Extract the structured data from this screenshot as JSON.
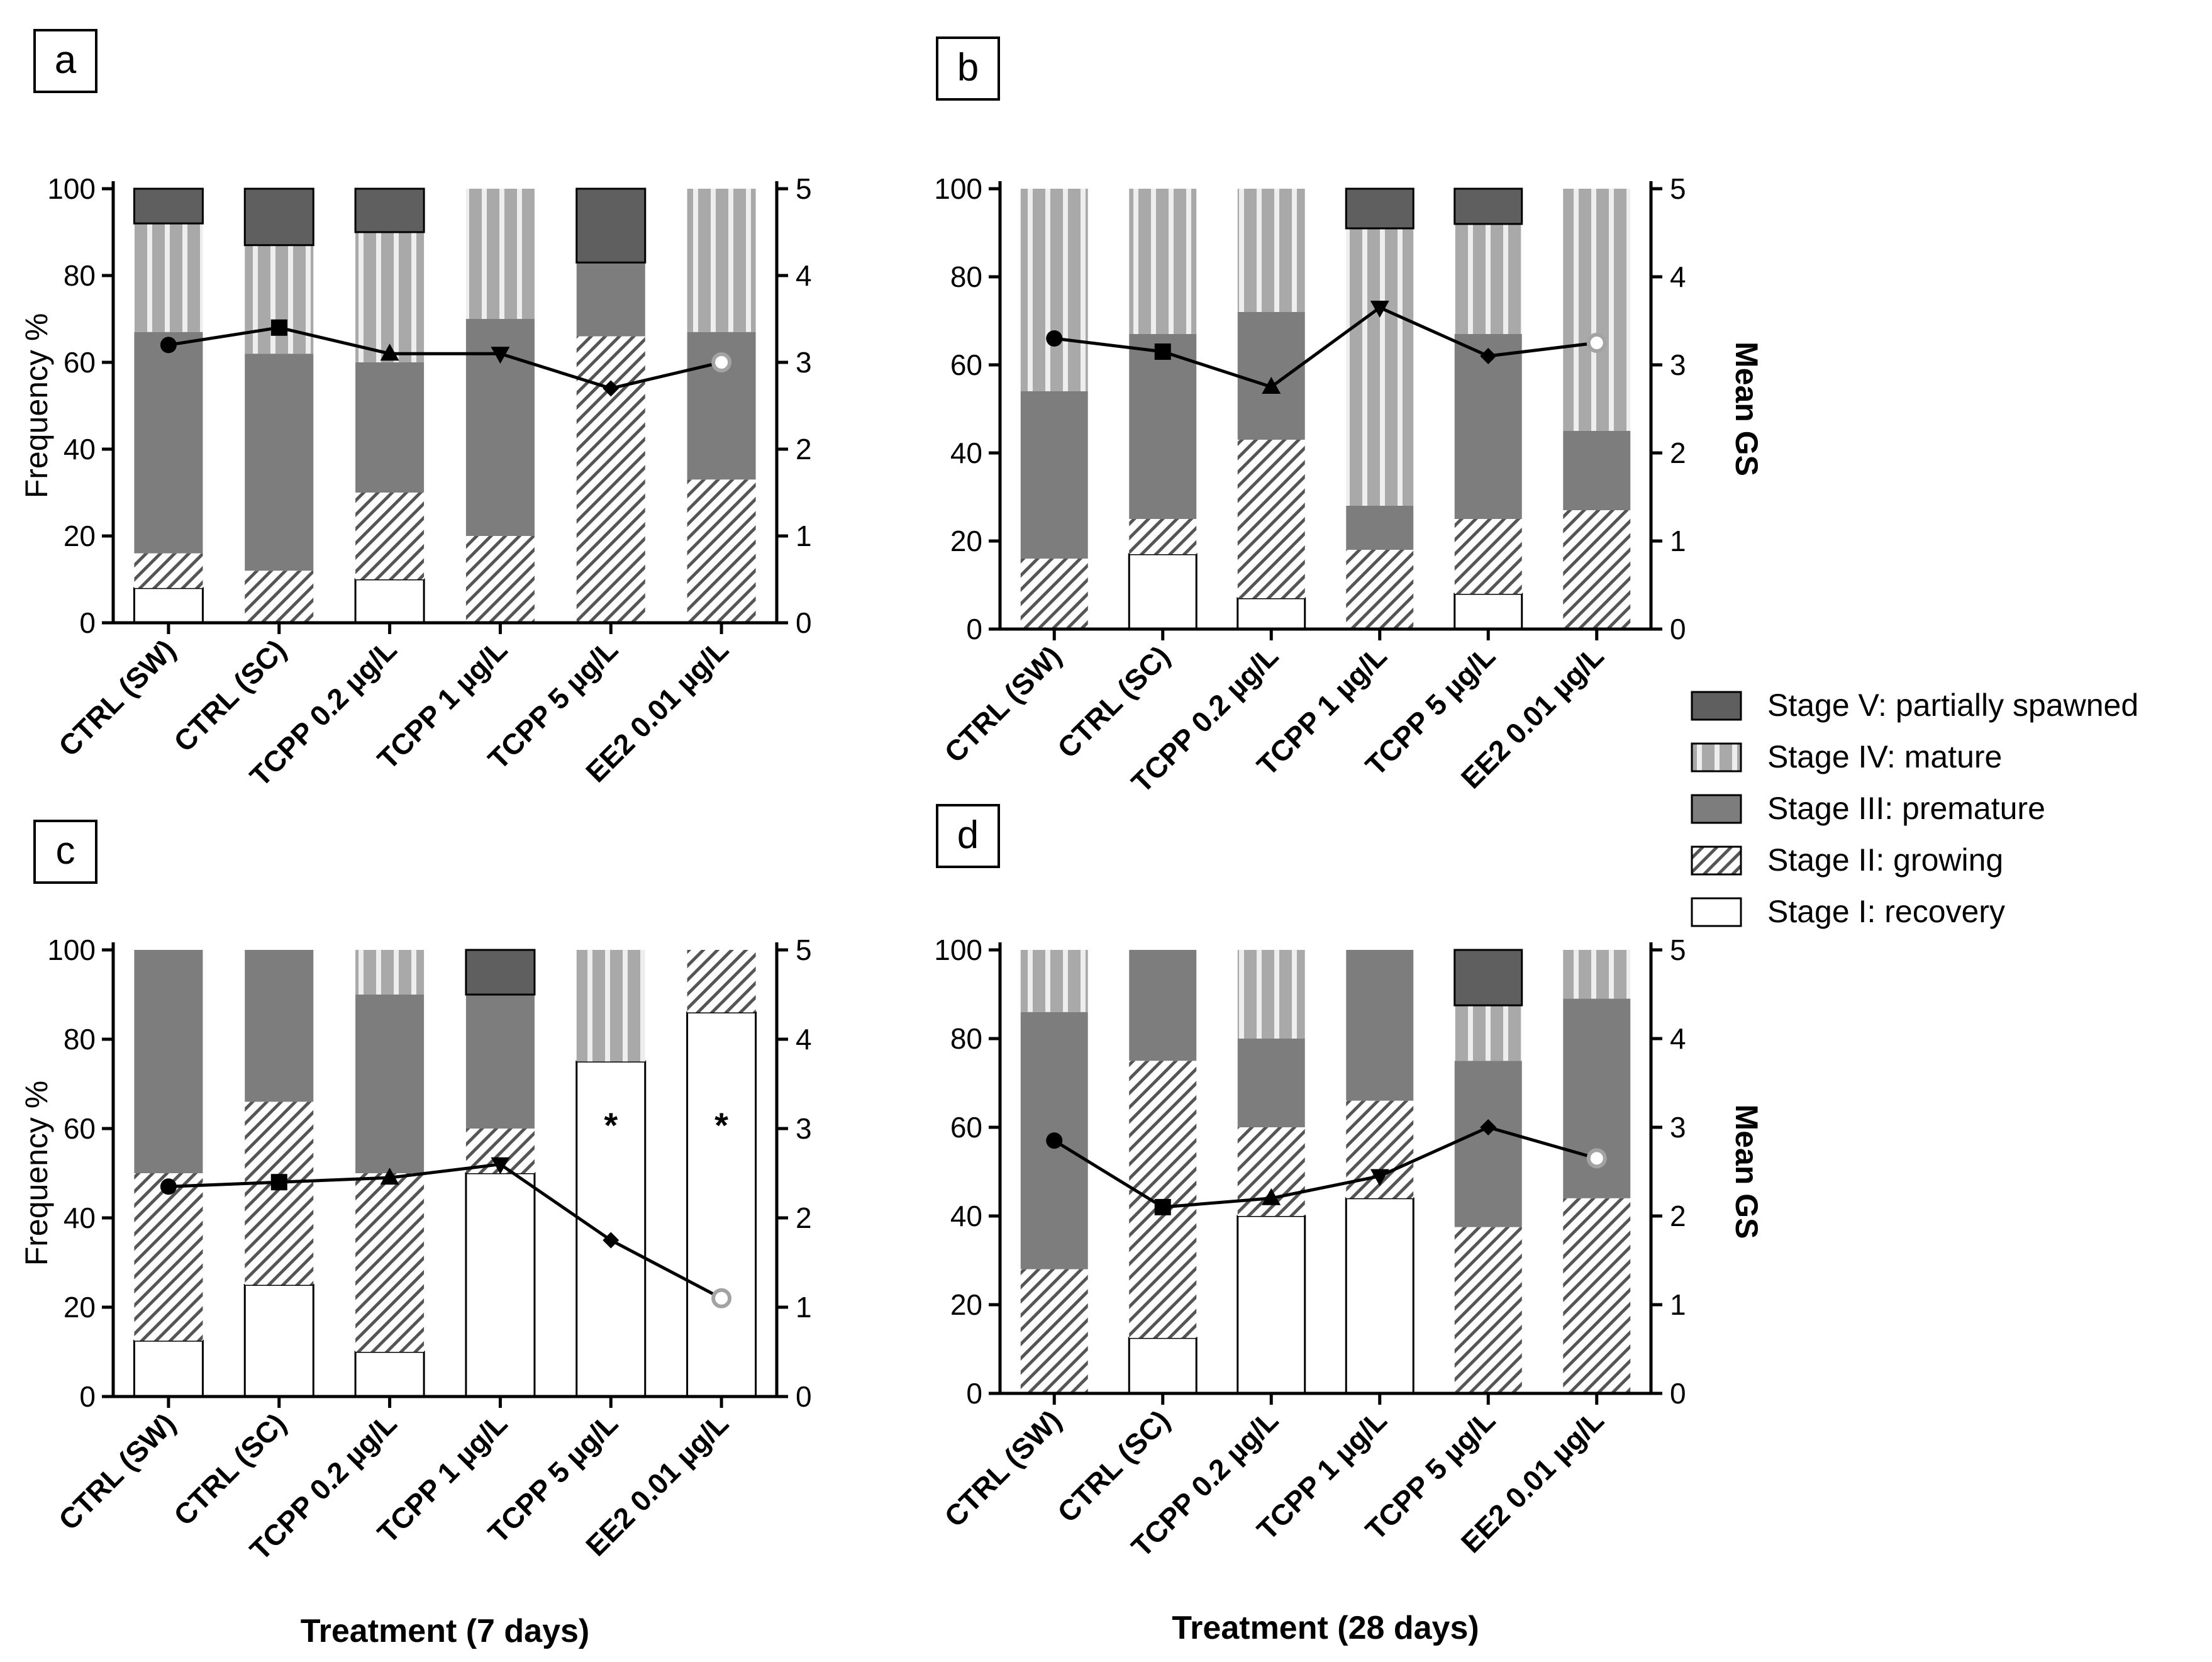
{
  "colors": {
    "stage_v": "#5f5f5f",
    "stage_iv_bg": "#a9a9a9",
    "stage_iv_stripe": "#eeeeee",
    "stage_iii": "#7d7d7d",
    "stage_ii_hatch": "#555555",
    "stage_i": "#ffffff",
    "axis": "#000000",
    "marker_hollow": "#a3a3a3"
  },
  "legend": {
    "items": [
      {
        "key": "V",
        "label": "Stage V: partially spawned"
      },
      {
        "key": "IV",
        "label": "Stage IV: mature"
      },
      {
        "key": "III",
        "label": "Stage III: premature"
      },
      {
        "key": "II",
        "label": "Stage II: growing"
      },
      {
        "key": "I",
        "label": "Stage I: recovery"
      }
    ]
  },
  "chart_data": [
    {
      "panel": "a",
      "type": "stacked-bar+line",
      "ylabel": "Frequency %",
      "y2label": "",
      "xlabel": "",
      "ylim": [
        0,
        100
      ],
      "yticks": [
        0,
        20,
        40,
        60,
        80,
        100
      ],
      "y2lim": [
        0,
        5
      ],
      "y2ticks": [
        0,
        1,
        2,
        3,
        4,
        5
      ],
      "categories": [
        "CTRL (SW)",
        "CTRL (SC)",
        "TCPP 0.2 µg/L",
        "TCPP 1 µg/L",
        "TCPP 5 µg/L",
        "EE2 0.01 µg/L"
      ],
      "series": [
        {
          "name": "Stage I: recovery",
          "values": [
            8,
            0,
            10,
            0,
            0,
            0
          ]
        },
        {
          "name": "Stage II: growing",
          "values": [
            8,
            12,
            20,
            20,
            66,
            33
          ]
        },
        {
          "name": "Stage III: premature",
          "values": [
            51,
            50,
            30,
            50,
            17,
            34
          ]
        },
        {
          "name": "Stage IV: mature",
          "values": [
            25,
            25,
            30,
            30,
            0,
            33
          ]
        },
        {
          "name": "Stage V: partially spawned",
          "values": [
            8,
            13,
            10,
            0,
            17,
            0
          ]
        }
      ],
      "mean_gs": [
        3.2,
        3.4,
        3.1,
        3.1,
        2.7,
        3.0
      ],
      "markers": [
        "circle",
        "square",
        "triangle-up",
        "triangle-down",
        "diamond",
        "hollow-circle"
      ],
      "annotations": [
        "",
        "",
        "",
        "",
        "",
        ""
      ]
    },
    {
      "panel": "b",
      "type": "stacked-bar+line",
      "ylabel": "",
      "y2label": "Mean GS",
      "xlabel": "",
      "ylim": [
        0,
        100
      ],
      "yticks": [
        0,
        20,
        40,
        60,
        80,
        100
      ],
      "y2lim": [
        0,
        5
      ],
      "y2ticks": [
        0,
        1,
        2,
        3,
        4,
        5
      ],
      "categories": [
        "CTRL (SW)",
        "CTRL (SC)",
        "TCPP 0.2 µg/L",
        "TCPP 1 µg/L",
        "TCPP 5 µg/L",
        "EE2 0.01 µg/L"
      ],
      "series": [
        {
          "name": "Stage I: recovery",
          "values": [
            0,
            17,
            7,
            0,
            8,
            0
          ]
        },
        {
          "name": "Stage II: growing",
          "values": [
            16,
            8,
            36,
            18,
            17,
            27
          ]
        },
        {
          "name": "Stage III: premature",
          "values": [
            38,
            42,
            29,
            10,
            42,
            18
          ]
        },
        {
          "name": "Stage IV: mature",
          "values": [
            46,
            33,
            28,
            63,
            25,
            55
          ]
        },
        {
          "name": "Stage V: partially spawned",
          "values": [
            0,
            0,
            0,
            9,
            8,
            0
          ]
        }
      ],
      "mean_gs": [
        3.3,
        3.15,
        2.75,
        3.65,
        3.1,
        3.25
      ],
      "markers": [
        "circle",
        "square",
        "triangle-up",
        "triangle-down",
        "diamond",
        "hollow-circle"
      ],
      "annotations": [
        "",
        "",
        "",
        "",
        "",
        ""
      ]
    },
    {
      "panel": "c",
      "type": "stacked-bar+line",
      "ylabel": "Frequency %",
      "y2label": "",
      "xlabel": "Treatment (7 days)",
      "ylim": [
        0,
        100
      ],
      "yticks": [
        0,
        20,
        40,
        60,
        80,
        100
      ],
      "y2lim": [
        0,
        5
      ],
      "y2ticks": [
        0,
        1,
        2,
        3,
        4,
        5
      ],
      "categories": [
        "CTRL (SW)",
        "CTRL (SC)",
        "TCPP 0.2 µg/L",
        "TCPP 1 µg/L",
        "TCPP 5 µg/L",
        "EE2 0.01 µg/L"
      ],
      "series": [
        {
          "name": "Stage I: recovery",
          "values": [
            12.5,
            25,
            10,
            50,
            75,
            86
          ]
        },
        {
          "name": "Stage II: growing",
          "values": [
            37.5,
            41,
            40,
            10,
            0,
            14
          ]
        },
        {
          "name": "Stage III: premature",
          "values": [
            50,
            34,
            40,
            30,
            0,
            0
          ]
        },
        {
          "name": "Stage IV: mature",
          "values": [
            0,
            0,
            10,
            0,
            25,
            0
          ]
        },
        {
          "name": "Stage V: partially spawned",
          "values": [
            0,
            0,
            0,
            10,
            0,
            0
          ]
        }
      ],
      "mean_gs": [
        2.35,
        2.4,
        2.45,
        2.6,
        1.75,
        1.1
      ],
      "markers": [
        "circle",
        "square",
        "triangle-up",
        "triangle-down",
        "diamond",
        "hollow-circle"
      ],
      "annotations": [
        "",
        "",
        "",
        "",
        "*",
        "*"
      ]
    },
    {
      "panel": "d",
      "type": "stacked-bar+line",
      "ylabel": "",
      "y2label": "Mean GS",
      "xlabel": "Treatment (28 days)",
      "ylim": [
        0,
        100
      ],
      "yticks": [
        0,
        20,
        40,
        60,
        80,
        100
      ],
      "y2lim": [
        0,
        5
      ],
      "y2ticks": [
        0,
        1,
        2,
        3,
        4,
        5
      ],
      "categories": [
        "CTRL (SW)",
        "CTRL (SC)",
        "TCPP 0.2 µg/L",
        "TCPP 1 µg/L",
        "TCPP 5 µg/L",
        "EE2 0.01 µg/L"
      ],
      "series": [
        {
          "name": "Stage I: recovery",
          "values": [
            0,
            12.5,
            40,
            44,
            0,
            0
          ]
        },
        {
          "name": "Stage II: growing",
          "values": [
            28,
            62.5,
            20,
            22,
            37.5,
            44
          ]
        },
        {
          "name": "Stage III: premature",
          "values": [
            58,
            25,
            20,
            34,
            37.5,
            45
          ]
        },
        {
          "name": "Stage IV: mature",
          "values": [
            14,
            0,
            20,
            0,
            12.5,
            11
          ]
        },
        {
          "name": "Stage V: partially spawned",
          "values": [
            0,
            0,
            0,
            0,
            12.5,
            0
          ]
        }
      ],
      "mean_gs": [
        2.85,
        2.1,
        2.2,
        2.45,
        3.0,
        2.65
      ],
      "markers": [
        "circle",
        "square",
        "triangle-up",
        "triangle-down",
        "diamond",
        "hollow-circle"
      ],
      "annotations": [
        "",
        "",
        "",
        "",
        "",
        ""
      ]
    }
  ]
}
